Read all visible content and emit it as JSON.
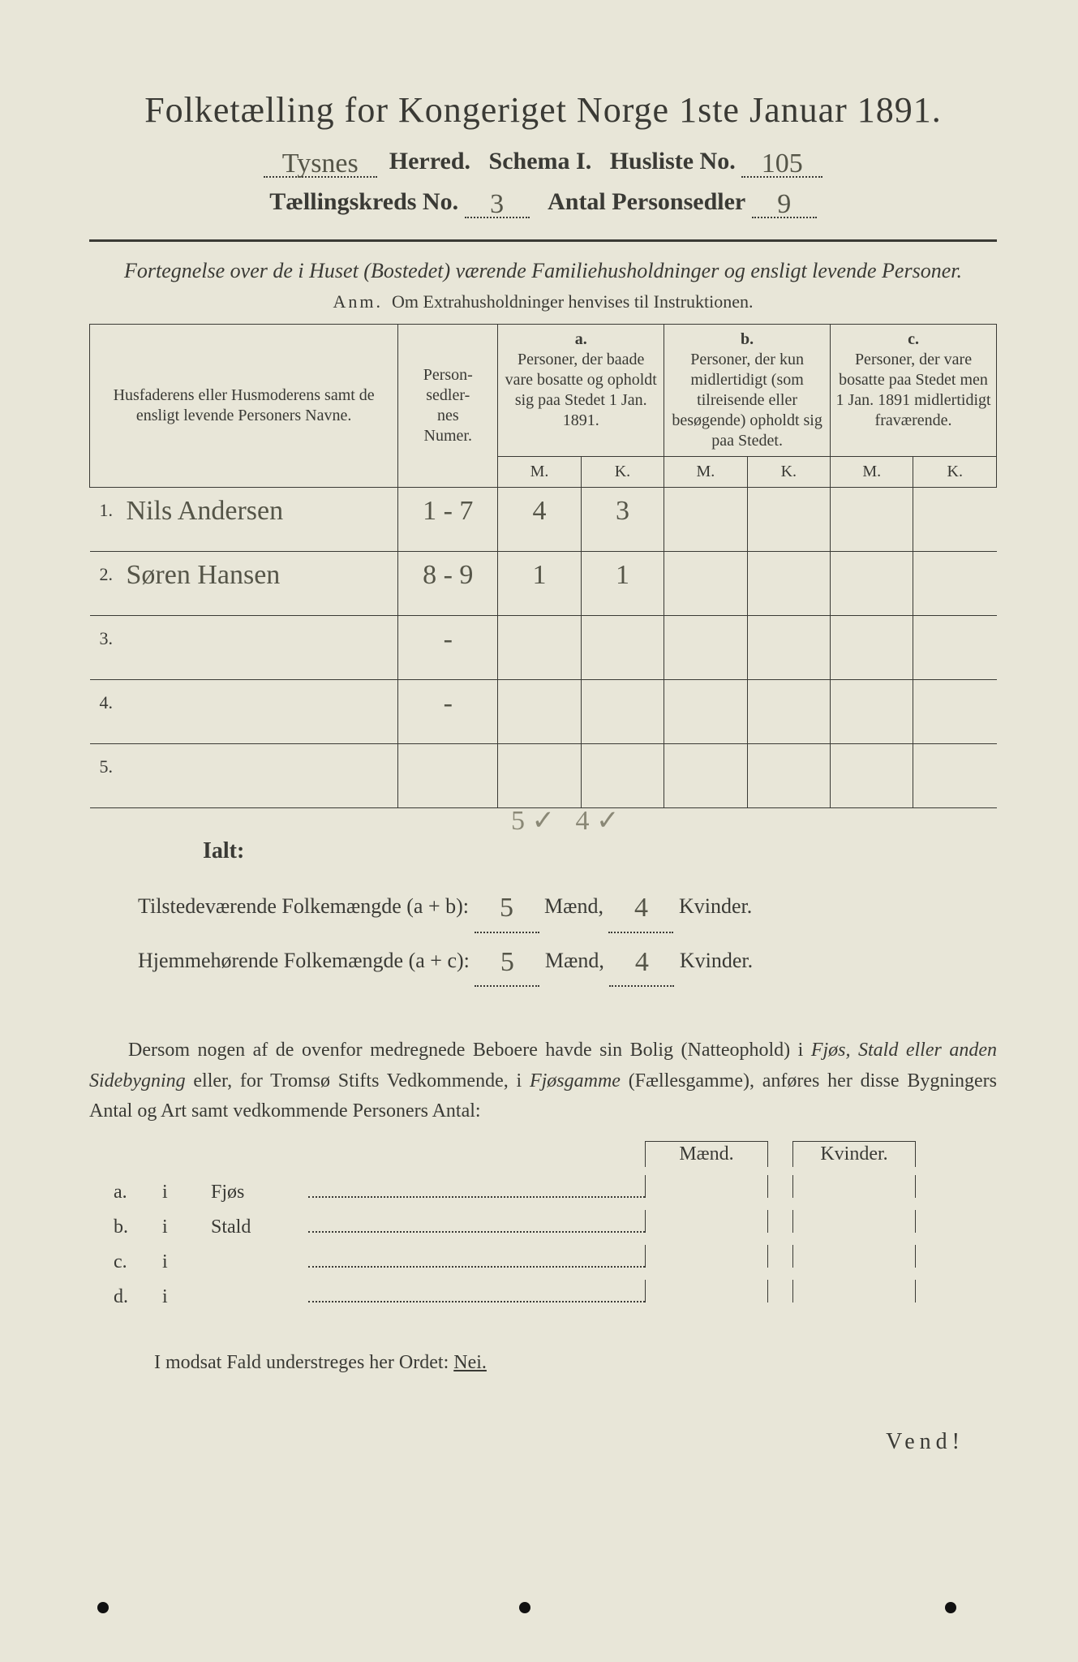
{
  "title": "Folketælling for Kongeriget Norge 1ste Januar 1891.",
  "header": {
    "herred_value": "Tysnes",
    "herred_label": "Herred.",
    "schema_label": "Schema I.",
    "husliste_label": "Husliste No.",
    "husliste_value": "105",
    "kreds_label": "Tællingskreds No.",
    "kreds_value": "3",
    "personsedler_label": "Antal Personsedler",
    "personsedler_value": "9"
  },
  "subtitle": "Fortegnelse over de i Huset (Bostedet) værende Familiehusholdninger og ensligt levende Personer.",
  "note_prefix": "Anm.",
  "note_text": "Om Extrahusholdninger henvises til Instruktionen.",
  "columns": {
    "name": "Husfaderens eller Husmoderens samt de ensligt levende Personers Navne.",
    "num": "Person-\nsedler-\nnes\nNumer.",
    "a_label": "a.",
    "a_text": "Personer, der baade vare bosatte og opholdt sig paa Stedet 1 Jan. 1891.",
    "b_label": "b.",
    "b_text": "Personer, der kun midlertidigt (som tilreisende eller besøgende) opholdt sig paa Stedet.",
    "c_label": "c.",
    "c_text": "Personer, der vare bosatte paa Stedet men 1 Jan. 1891 midlertidigt fraværende.",
    "M": "M.",
    "K": "K."
  },
  "rows": [
    {
      "idx": "1.",
      "name": "Nils Andersen",
      "num": "1 - 7",
      "aM": "4",
      "aK": "3",
      "bM": "",
      "bK": "",
      "cM": "",
      "cK": ""
    },
    {
      "idx": "2.",
      "name": "Søren Hansen",
      "num": "8 - 9",
      "aM": "1",
      "aK": "1",
      "bM": "",
      "bK": "",
      "cM": "",
      "cK": ""
    },
    {
      "idx": "3.",
      "name": "",
      "num": "-",
      "aM": "",
      "aK": "",
      "bM": "",
      "bK": "",
      "cM": "",
      "cK": ""
    },
    {
      "idx": "4.",
      "name": "",
      "num": "-",
      "aM": "",
      "aK": "",
      "bM": "",
      "bK": "",
      "cM": "",
      "cK": ""
    },
    {
      "idx": "5.",
      "name": "",
      "num": "",
      "aM": "",
      "aK": "",
      "bM": "",
      "bK": "",
      "cM": "",
      "cK": ""
    }
  ],
  "totals": {
    "ialt": "Ialt:",
    "pencil_m": "5 ✓",
    "pencil_k": "4 ✓",
    "line1_label": "Tilstedeværende Folkemængde (a + b):",
    "line1_m": "5",
    "line1_k": "4",
    "line2_label": "Hjemmehørende Folkemængde (a + c):",
    "line2_m": "5",
    "line2_k": "4",
    "maend": "Mænd,",
    "kvinder": "Kvinder."
  },
  "para": {
    "p1": "Dersom nogen af de ovenfor medregnede Beboere havde sin Bolig (Natteophold) i ",
    "it1": "Fjøs, Stald eller anden Sidebygning",
    "p2": " eller, for Tromsø Stifts Vedkommende, i ",
    "it2": "Fjøsgamme",
    "p3": " (Fællesgamme), anføres her disse Bygningers Antal og Art samt vedkommende Personers Antal:"
  },
  "bldg": {
    "maend": "Mænd.",
    "kvinder": "Kvinder.",
    "rows": [
      {
        "lbl": "a.",
        "i": "i",
        "nm": "Fjøs"
      },
      {
        "lbl": "b.",
        "i": "i",
        "nm": "Stald"
      },
      {
        "lbl": "c.",
        "i": "i",
        "nm": ""
      },
      {
        "lbl": "d.",
        "i": "i",
        "nm": ""
      }
    ]
  },
  "nei_line_pre": "I modsat Fald understreges her Ordet: ",
  "nei_word": "Nei.",
  "vend": "Vend!",
  "colors": {
    "paper": "#e8e6d8",
    "ink": "#3a3a35",
    "pencil": "#8a8876",
    "handwriting": "#555548"
  }
}
